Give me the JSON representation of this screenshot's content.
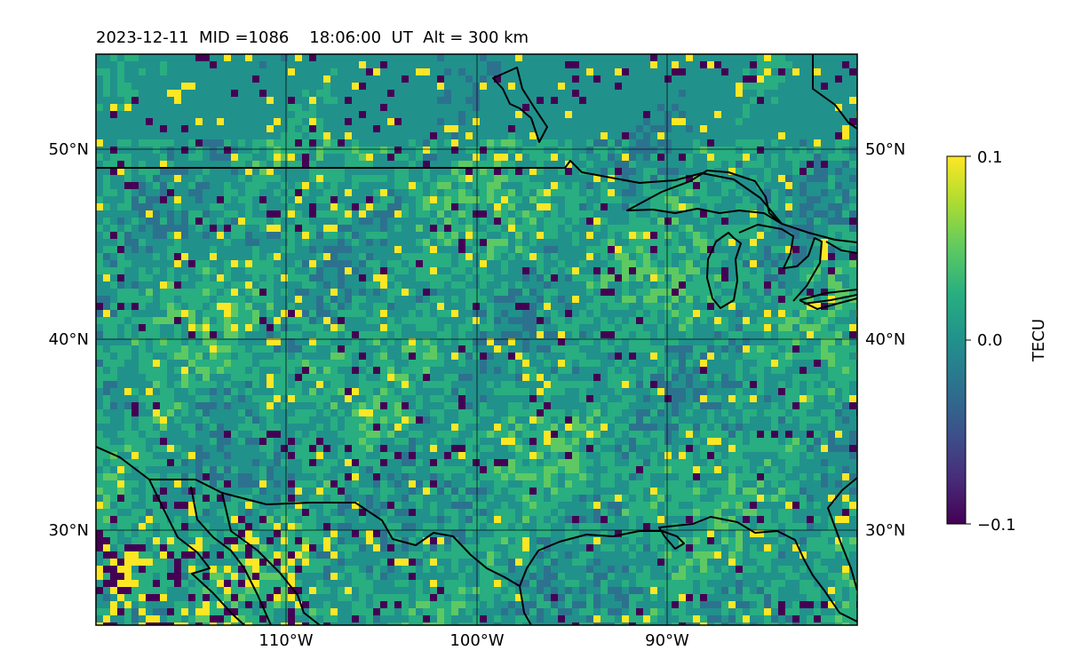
{
  "title": "2023-12-11  MID =1086    18:06:00  UT  Alt = 300 km",
  "map": {
    "lon_range": [
      -120,
      -80
    ],
    "lat_range": [
      25,
      55
    ],
    "lon_ticks": [
      "110°W",
      "100°W",
      "90°W"
    ],
    "lat_ticks": [
      "50°N",
      "40°N",
      "30°N"
    ],
    "gridlines": true
  },
  "colorbar": {
    "label": "TECU",
    "colormap": "viridis",
    "ticks": [
      "0.1",
      "0.0",
      "−0.1"
    ],
    "range": [
      -0.1,
      0.1
    ]
  },
  "colors": {
    "coastline": "#000000",
    "grid": "#000000",
    "background": "#ffffff"
  }
}
